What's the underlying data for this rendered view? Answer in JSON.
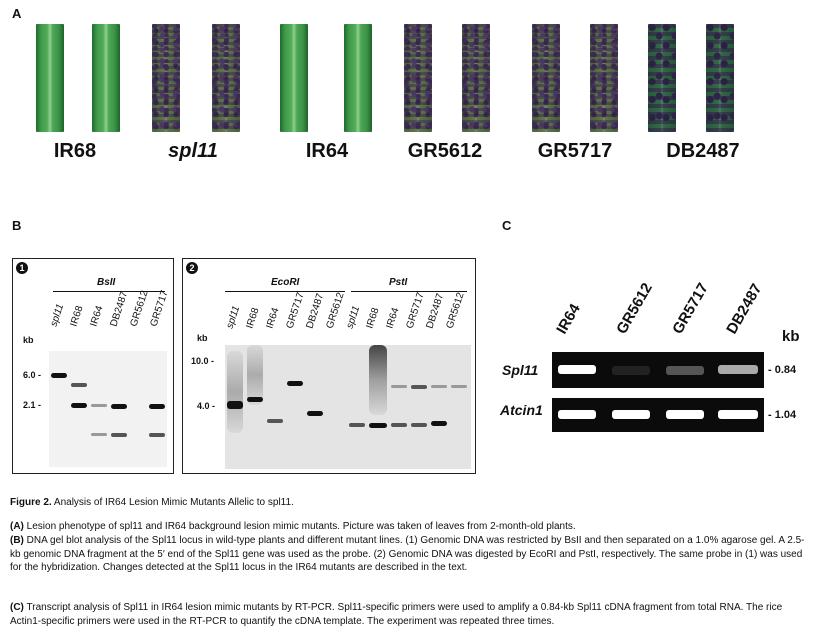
{
  "panel_letters": {
    "a": "A",
    "b": "B",
    "c": "C"
  },
  "panel_a": {
    "labels": [
      "IR68",
      "spl11",
      "IR64",
      "GR5612",
      "GR5717",
      "DB2487"
    ]
  },
  "panel_b1": {
    "number": "1",
    "enzyme": "BsII",
    "kb": "kb",
    "lanes": [
      "spl11",
      "IR68",
      "IR64",
      "DB2487",
      "GR5612",
      "GR5717"
    ],
    "markers": [
      "6.0 -",
      "2.1 -"
    ]
  },
  "panel_b2": {
    "number": "2",
    "enzyme_left": "EcoRI",
    "enzyme_right": "PstI",
    "kb": "kb",
    "lanes": [
      "spl11",
      "IR68",
      "IR64",
      "GR5717",
      "DB2487",
      "GR5612",
      "spl11",
      "IR68",
      "IR64",
      "GR5717",
      "DB2487",
      "GR5612"
    ],
    "markers": [
      "10.0 -",
      "4.0 -"
    ]
  },
  "panel_c": {
    "lanes": [
      "IR64",
      "GR5612",
      "GR5717",
      "DB2487"
    ],
    "kb": "kb",
    "rows": [
      "Spl11",
      "Atcin1"
    ],
    "sizes": [
      "- 0.84",
      "- 1.04"
    ]
  },
  "caption": {
    "title_bold": "Figure 2.",
    "title_rest": "Analysis of IR64 Lesion Mimic Mutants Allelic to spl11.",
    "a_label": "(A)",
    "a_text": "Lesion phenotype of spl11 and IR64 background lesion mimic mutants. Picture was taken of leaves from 2-month-old plants.",
    "b_label": "(B)",
    "b_text": "DNA gel blot analysis of the Spl11 locus in wild-type plants and different mutant lines. (1) Genomic DNA was restricted by BsII and then separated on a 1.0% agarose gel. A 2.5-kb genomic DNA fragment at the 5′ end of the Spl11 gene was used as the probe. (2) Genomic DNA was digested by EcoRI and PstI, respectively. The same probe in (1) was used for the hybridization. Changes detected at the Spl11 locus in the IR64 mutants are described in the text.",
    "c_label": "(C)",
    "c_text": "Transcript analysis of Spl11 in IR64 lesion mimic mutants by RT-PCR. Spl11-specific primers were used to amplify a 0.84-kb Spl11 cDNA fragment from total RNA. The rice Actin1-specific primers were used in the RT-PCR to quantify the cDNA template. The experiment was repeated three times."
  }
}
